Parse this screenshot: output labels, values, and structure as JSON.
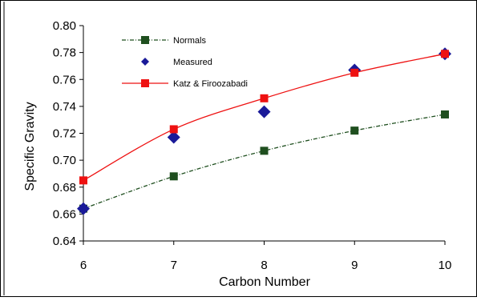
{
  "chart_data": {
    "type": "line",
    "title": "",
    "xlabel": "Carbon Number",
    "ylabel": "Specific Gravity",
    "x": [
      6,
      7,
      8,
      9,
      10
    ],
    "xlim": [
      6,
      10
    ],
    "ylim": [
      0.64,
      0.8
    ],
    "y_ticks": [
      "0.64",
      "0.66",
      "0.68",
      "0.70",
      "0.72",
      "0.74",
      "0.76",
      "0.78",
      "0.80"
    ],
    "x_ticks": [
      "6",
      "7",
      "8",
      "9",
      "10"
    ],
    "grid": false,
    "legend_position": "top-left",
    "series": [
      {
        "name": "Normals",
        "values": [
          0.664,
          0.688,
          0.707,
          0.722,
          0.734
        ],
        "color": "#1f4f1f",
        "marker": "square",
        "line": "dashed-dot"
      },
      {
        "name": "Measured",
        "values": [
          0.664,
          0.717,
          0.736,
          0.767,
          0.779
        ],
        "color": "#1a1a99",
        "marker": "diamond",
        "line": "none"
      },
      {
        "name": "Katz & Firoozabadi",
        "values": [
          0.685,
          0.723,
          0.746,
          0.765,
          0.779
        ],
        "color": "#ee1111",
        "marker": "square",
        "line": "solid"
      }
    ]
  }
}
